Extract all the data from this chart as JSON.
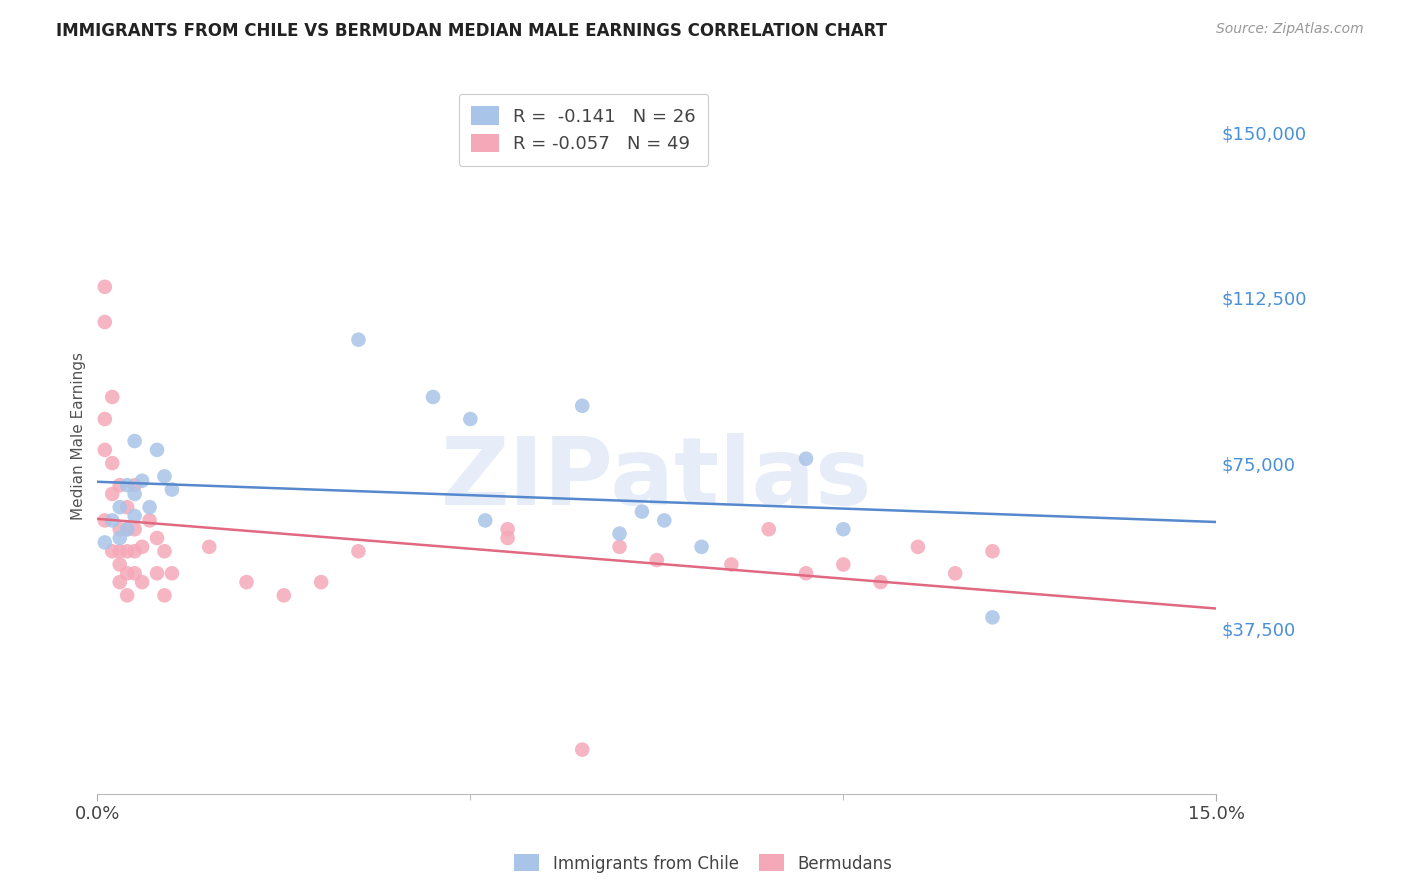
{
  "title": "IMMIGRANTS FROM CHILE VS BERMUDAN MEDIAN MALE EARNINGS CORRELATION CHART",
  "source": "Source: ZipAtlas.com",
  "ylabel": "Median Male Earnings",
  "watermark": "ZIPatlas",
  "y_ticks": [
    0,
    37500,
    75000,
    112500,
    150000
  ],
  "y_tick_labels": [
    "",
    "$37,500",
    "$75,000",
    "$112,500",
    "$150,000"
  ],
  "x_min": 0.0,
  "x_max": 0.15,
  "y_min": 0,
  "y_max": 162500,
  "color_blue": "#a8c4e8",
  "color_pink": "#f5a8b8",
  "line_color_blue": "#5588cc",
  "line_color_pink": "#e06880",
  "tick_color": "#4a90d9",
  "scatter_blue_x": [
    0.001,
    0.002,
    0.003,
    0.003,
    0.004,
    0.004,
    0.005,
    0.005,
    0.005,
    0.006,
    0.007,
    0.008,
    0.009,
    0.01,
    0.035,
    0.045,
    0.05,
    0.052,
    0.065,
    0.07,
    0.073,
    0.076,
    0.081,
    0.095,
    0.1,
    0.12
  ],
  "scatter_blue_y": [
    57000,
    62000,
    65000,
    58000,
    60000,
    70000,
    63000,
    68000,
    80000,
    71000,
    65000,
    78000,
    72000,
    69000,
    103000,
    90000,
    85000,
    62000,
    88000,
    59000,
    64000,
    62000,
    56000,
    76000,
    60000,
    40000
  ],
  "scatter_pink_x": [
    0.001,
    0.001,
    0.001,
    0.001,
    0.001,
    0.002,
    0.002,
    0.002,
    0.002,
    0.003,
    0.003,
    0.003,
    0.003,
    0.003,
    0.004,
    0.004,
    0.004,
    0.004,
    0.004,
    0.005,
    0.005,
    0.005,
    0.005,
    0.006,
    0.006,
    0.007,
    0.008,
    0.008,
    0.009,
    0.009,
    0.01,
    0.015,
    0.02,
    0.025,
    0.035,
    0.055,
    0.065,
    0.07,
    0.075,
    0.085,
    0.09,
    0.095,
    0.1,
    0.105,
    0.11,
    0.115,
    0.12,
    0.055,
    0.03
  ],
  "scatter_pink_y": [
    115000,
    107000,
    85000,
    78000,
    62000,
    90000,
    75000,
    68000,
    55000,
    70000,
    60000,
    55000,
    52000,
    48000,
    65000,
    60000,
    55000,
    50000,
    45000,
    70000,
    60000,
    55000,
    50000,
    56000,
    48000,
    62000,
    58000,
    50000,
    55000,
    45000,
    50000,
    56000,
    48000,
    45000,
    55000,
    58000,
    10000,
    56000,
    53000,
    52000,
    60000,
    50000,
    52000,
    48000,
    56000,
    50000,
    55000,
    60000,
    48000
  ]
}
